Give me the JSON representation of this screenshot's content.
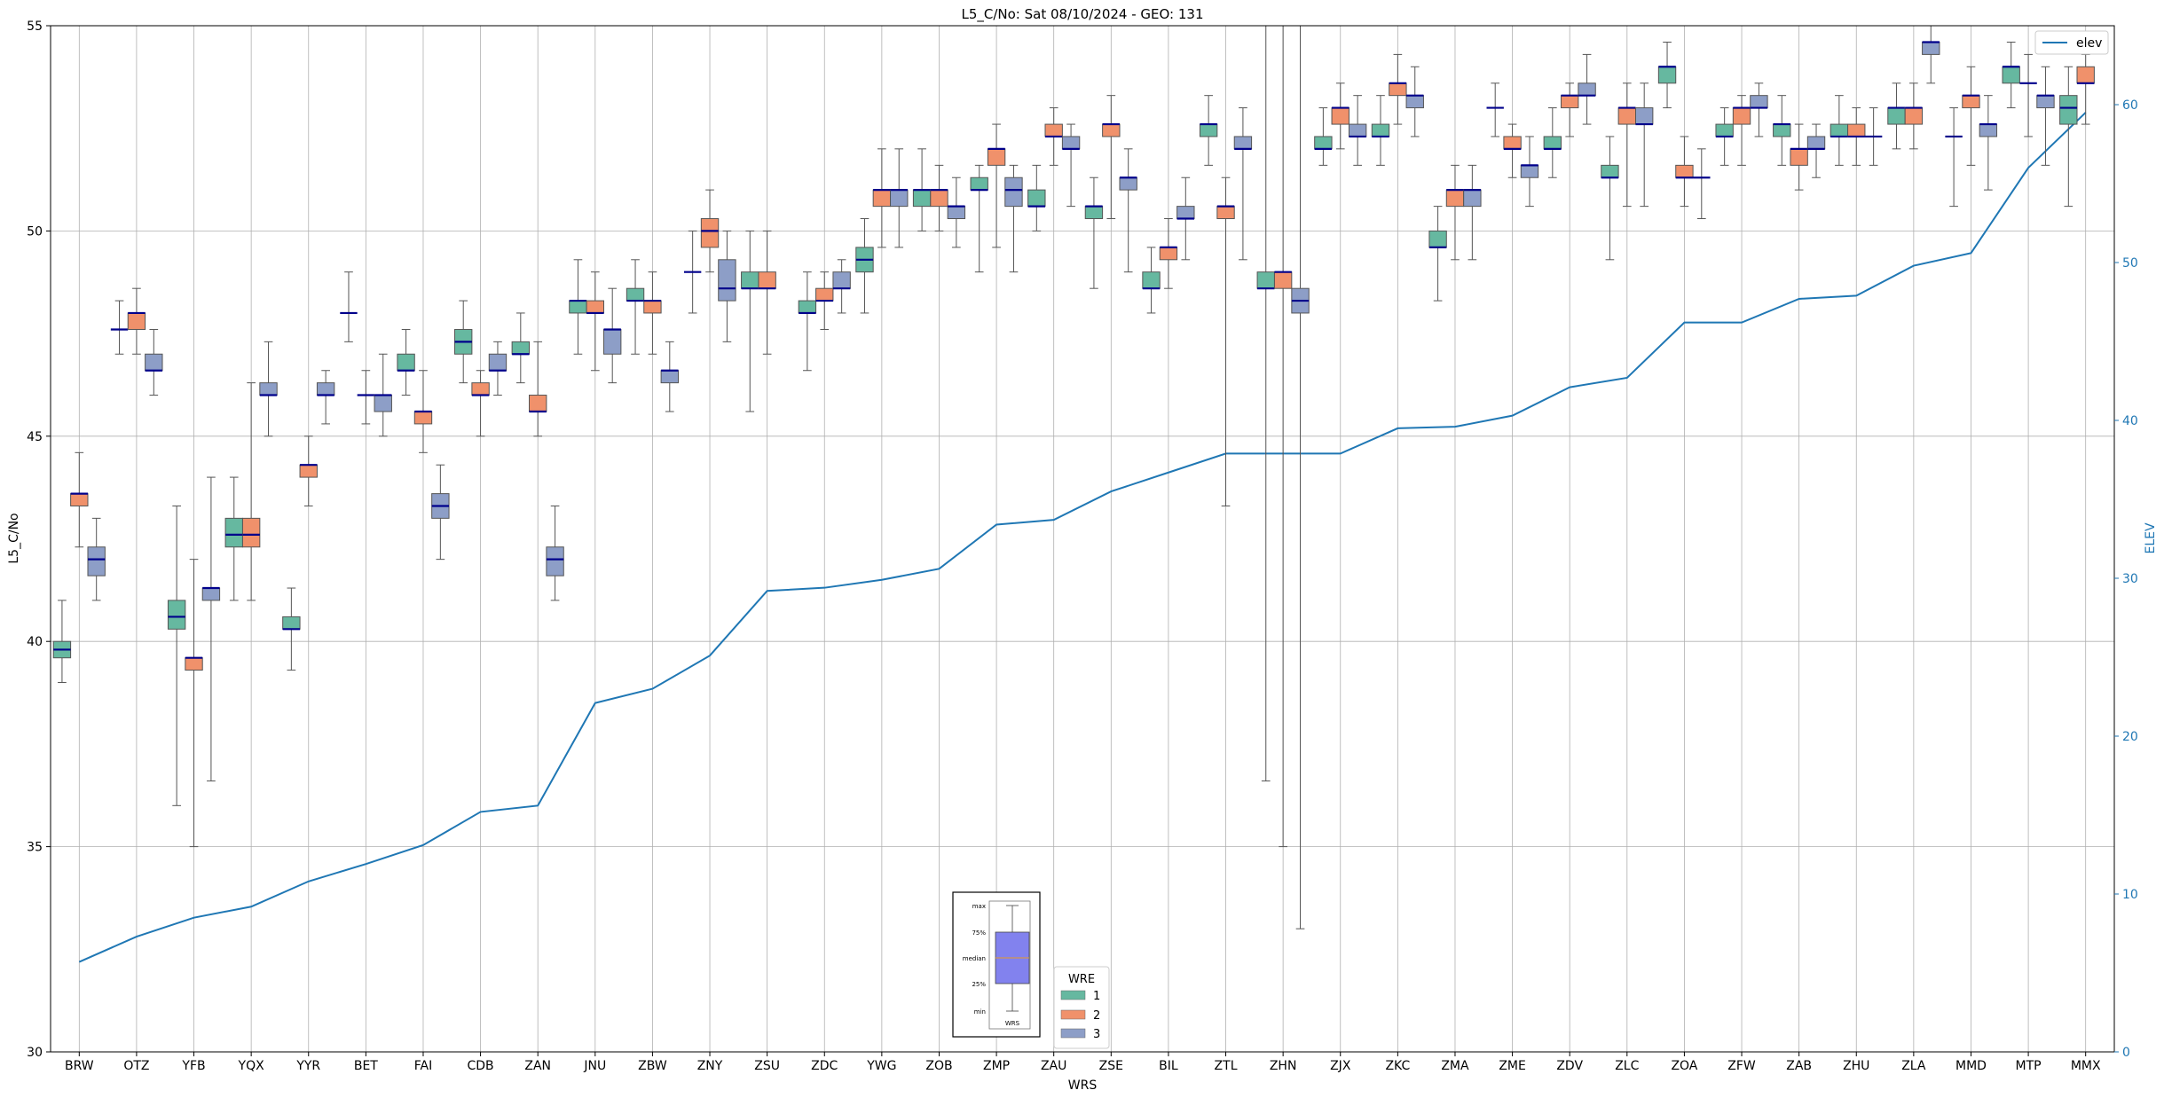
{
  "chart_data": {
    "type": "box",
    "title": "L5_C/No: Sat 08/10/2024 - GEO: 131",
    "xlabel": "WRS",
    "ylabel": "L5_C/No",
    "ylabel_right": "ELEV",
    "ylim": [
      30,
      55
    ],
    "ylim_right": [
      0,
      65
    ],
    "yticks": [
      30,
      35,
      40,
      45,
      50,
      55
    ],
    "yticks_right": [
      0,
      10,
      20,
      30,
      40,
      50,
      60
    ],
    "grid": true,
    "colors": {
      "wre1": "#66b8a0",
      "wre2": "#f0916b",
      "wre3": "#8d9ec7",
      "median": "#00008b",
      "elev": "#1f77b4"
    },
    "categories": [
      "BRW",
      "OTZ",
      "YFB",
      "YQX",
      "YYR",
      "BET",
      "FAI",
      "CDB",
      "ZAN",
      "JNU",
      "ZBW",
      "ZNY",
      "ZSU",
      "ZDC",
      "YWG",
      "ZOB",
      "ZMP",
      "ZAU",
      "ZSE",
      "BIL",
      "ZTL",
      "ZHN",
      "ZJX",
      "ZKC",
      "ZMA",
      "ZME",
      "ZDV",
      "ZLC",
      "ZOA",
      "ZFW",
      "ZAB",
      "ZHU",
      "ZLA",
      "MMD",
      "MTP",
      "MMX"
    ],
    "boxes": [
      {
        "site": "BRW",
        "wre": 1,
        "min": 39.0,
        "q1": 39.6,
        "med": 39.8,
        "q3": 40.0,
        "max": 41.0
      },
      {
        "site": "BRW",
        "wre": 2,
        "min": 42.3,
        "q1": 43.3,
        "med": 43.6,
        "q3": 43.6,
        "max": 44.6
      },
      {
        "site": "BRW",
        "wre": 3,
        "min": 41.0,
        "q1": 41.6,
        "med": 42.0,
        "q3": 42.3,
        "max": 43.0
      },
      {
        "site": "OTZ",
        "wre": 1,
        "min": 47.0,
        "q1": 47.6,
        "med": 47.6,
        "q3": 47.6,
        "max": 48.3
      },
      {
        "site": "OTZ",
        "wre": 2,
        "min": 47.0,
        "q1": 47.6,
        "med": 48.0,
        "q3": 48.0,
        "max": 48.6
      },
      {
        "site": "OTZ",
        "wre": 3,
        "min": 46.0,
        "q1": 46.6,
        "med": 46.6,
        "q3": 47.0,
        "max": 47.6
      },
      {
        "site": "YFB",
        "wre": 1,
        "min": 36.0,
        "q1": 40.3,
        "med": 40.6,
        "q3": 41.0,
        "max": 43.3
      },
      {
        "site": "YFB",
        "wre": 2,
        "min": 35.0,
        "q1": 39.3,
        "med": 39.6,
        "q3": 39.6,
        "max": 42.0
      },
      {
        "site": "YFB",
        "wre": 3,
        "min": 36.6,
        "q1": 41.0,
        "med": 41.3,
        "q3": 41.3,
        "max": 44.0
      },
      {
        "site": "YQX",
        "wre": 1,
        "min": 41.0,
        "q1": 42.3,
        "med": 42.6,
        "q3": 43.0,
        "max": 44.0
      },
      {
        "site": "YQX",
        "wre": 2,
        "min": 41.0,
        "q1": 42.3,
        "med": 42.6,
        "q3": 43.0,
        "max": 46.3
      },
      {
        "site": "YQX",
        "wre": 3,
        "min": 45.0,
        "q1": 46.0,
        "med": 46.0,
        "q3": 46.3,
        "max": 47.3
      },
      {
        "site": "YYR",
        "wre": 1,
        "min": 39.3,
        "q1": 40.3,
        "med": 40.3,
        "q3": 40.6,
        "max": 41.3
      },
      {
        "site": "YYR",
        "wre": 2,
        "min": 43.3,
        "q1": 44.0,
        "med": 44.3,
        "q3": 44.3,
        "max": 45.0
      },
      {
        "site": "YYR",
        "wre": 3,
        "min": 45.3,
        "q1": 46.0,
        "med": 46.0,
        "q3": 46.3,
        "max": 46.6
      },
      {
        "site": "BET",
        "wre": 1,
        "min": 47.3,
        "q1": 48.0,
        "med": 48.0,
        "q3": 48.0,
        "max": 49.0
      },
      {
        "site": "BET",
        "wre": 2,
        "min": 45.3,
        "q1": 46.0,
        "med": 46.0,
        "q3": 46.0,
        "max": 46.6
      },
      {
        "site": "BET",
        "wre": 3,
        "min": 45.0,
        "q1": 45.6,
        "med": 46.0,
        "q3": 46.0,
        "max": 47.0
      },
      {
        "site": "FAI",
        "wre": 1,
        "min": 46.0,
        "q1": 46.6,
        "med": 46.6,
        "q3": 47.0,
        "max": 47.6
      },
      {
        "site": "FAI",
        "wre": 2,
        "min": 44.6,
        "q1": 45.3,
        "med": 45.6,
        "q3": 45.6,
        "max": 46.6
      },
      {
        "site": "FAI",
        "wre": 3,
        "min": 42.0,
        "q1": 43.0,
        "med": 43.3,
        "q3": 43.6,
        "max": 44.3
      },
      {
        "site": "CDB",
        "wre": 1,
        "min": 46.3,
        "q1": 47.0,
        "med": 47.3,
        "q3": 47.6,
        "max": 48.3
      },
      {
        "site": "CDB",
        "wre": 2,
        "min": 45.0,
        "q1": 46.0,
        "med": 46.0,
        "q3": 46.3,
        "max": 46.6
      },
      {
        "site": "CDB",
        "wre": 3,
        "min": 46.0,
        "q1": 46.6,
        "med": 46.6,
        "q3": 47.0,
        "max": 47.3
      },
      {
        "site": "ZAN",
        "wre": 1,
        "min": 46.3,
        "q1": 47.0,
        "med": 47.0,
        "q3": 47.3,
        "max": 48.0
      },
      {
        "site": "ZAN",
        "wre": 2,
        "min": 45.0,
        "q1": 45.6,
        "med": 45.6,
        "q3": 46.0,
        "max": 47.3
      },
      {
        "site": "ZAN",
        "wre": 3,
        "min": 41.0,
        "q1": 41.6,
        "med": 42.0,
        "q3": 42.3,
        "max": 43.3
      },
      {
        "site": "JNU",
        "wre": 1,
        "min": 47.0,
        "q1": 48.0,
        "med": 48.3,
        "q3": 48.3,
        "max": 49.3
      },
      {
        "site": "JNU",
        "wre": 2,
        "min": 46.6,
        "q1": 48.0,
        "med": 48.0,
        "q3": 48.3,
        "max": 49.0
      },
      {
        "site": "JNU",
        "wre": 3,
        "min": 46.3,
        "q1": 47.0,
        "med": 47.6,
        "q3": 47.6,
        "max": 48.6
      },
      {
        "site": "ZBW",
        "wre": 1,
        "min": 47.0,
        "q1": 48.3,
        "med": 48.3,
        "q3": 48.6,
        "max": 49.3
      },
      {
        "site": "ZBW",
        "wre": 2,
        "min": 47.0,
        "q1": 48.0,
        "med": 48.3,
        "q3": 48.3,
        "max": 49.0
      },
      {
        "site": "ZBW",
        "wre": 3,
        "min": 45.6,
        "q1": 46.3,
        "med": 46.6,
        "q3": 46.6,
        "max": 47.3
      },
      {
        "site": "ZNY",
        "wre": 1,
        "min": 48.0,
        "q1": 49.0,
        "med": 49.0,
        "q3": 49.0,
        "max": 50.0
      },
      {
        "site": "ZNY",
        "wre": 2,
        "min": 49.0,
        "q1": 49.6,
        "med": 50.0,
        "q3": 50.3,
        "max": 51.0
      },
      {
        "site": "ZNY",
        "wre": 3,
        "min": 47.3,
        "q1": 48.3,
        "med": 48.6,
        "q3": 49.3,
        "max": 50.0
      },
      {
        "site": "ZSU",
        "wre": 1,
        "min": 45.6,
        "q1": 48.6,
        "med": 48.6,
        "q3": 49.0,
        "max": 50.0
      },
      {
        "site": "ZSU",
        "wre": 2,
        "min": 47.0,
        "q1": 48.6,
        "med": 48.6,
        "q3": 49.0,
        "max": 50.0
      },
      {
        "site": "ZDC",
        "wre": 1,
        "min": 46.6,
        "q1": 48.0,
        "med": 48.0,
        "q3": 48.3,
        "max": 49.0
      },
      {
        "site": "ZDC",
        "wre": 2,
        "min": 47.6,
        "q1": 48.3,
        "med": 48.3,
        "q3": 48.6,
        "max": 49.0
      },
      {
        "site": "ZDC",
        "wre": 3,
        "min": 48.0,
        "q1": 48.6,
        "med": 48.6,
        "q3": 49.0,
        "max": 49.3
      },
      {
        "site": "YWG",
        "wre": 1,
        "min": 48.0,
        "q1": 49.0,
        "med": 49.3,
        "q3": 49.6,
        "max": 50.3
      },
      {
        "site": "YWG",
        "wre": 2,
        "min": 49.6,
        "q1": 50.6,
        "med": 51.0,
        "q3": 51.0,
        "max": 52.0
      },
      {
        "site": "YWG",
        "wre": 3,
        "min": 49.6,
        "q1": 50.6,
        "med": 51.0,
        "q3": 51.0,
        "max": 52.0
      },
      {
        "site": "ZOB",
        "wre": 1,
        "min": 50.0,
        "q1": 50.6,
        "med": 51.0,
        "q3": 51.0,
        "max": 52.0
      },
      {
        "site": "ZOB",
        "wre": 2,
        "min": 50.0,
        "q1": 50.6,
        "med": 51.0,
        "q3": 51.0,
        "max": 51.6
      },
      {
        "site": "ZOB",
        "wre": 3,
        "min": 49.6,
        "q1": 50.3,
        "med": 50.6,
        "q3": 50.6,
        "max": 51.3
      },
      {
        "site": "ZMP",
        "wre": 1,
        "min": 49.0,
        "q1": 51.0,
        "med": 51.0,
        "q3": 51.3,
        "max": 51.6
      },
      {
        "site": "ZMP",
        "wre": 2,
        "min": 49.6,
        "q1": 51.6,
        "med": 52.0,
        "q3": 52.0,
        "max": 52.6
      },
      {
        "site": "ZMP",
        "wre": 3,
        "min": 49.0,
        "q1": 50.6,
        "med": 51.0,
        "q3": 51.3,
        "max": 51.6
      },
      {
        "site": "ZAU",
        "wre": 1,
        "min": 50.0,
        "q1": 50.6,
        "med": 50.6,
        "q3": 51.0,
        "max": 51.6
      },
      {
        "site": "ZAU",
        "wre": 2,
        "min": 51.6,
        "q1": 52.3,
        "med": 52.3,
        "q3": 52.6,
        "max": 53.0
      },
      {
        "site": "ZAU",
        "wre": 3,
        "min": 50.6,
        "q1": 52.0,
        "med": 52.0,
        "q3": 52.3,
        "max": 52.6
      },
      {
        "site": "ZSE",
        "wre": 1,
        "min": 48.6,
        "q1": 50.3,
        "med": 50.6,
        "q3": 50.6,
        "max": 51.3
      },
      {
        "site": "ZSE",
        "wre": 2,
        "min": 50.3,
        "q1": 52.3,
        "med": 52.6,
        "q3": 52.6,
        "max": 53.3
      },
      {
        "site": "ZSE",
        "wre": 3,
        "min": 49.0,
        "q1": 51.0,
        "med": 51.3,
        "q3": 51.3,
        "max": 52.0
      },
      {
        "site": "BIL",
        "wre": 1,
        "min": 48.0,
        "q1": 48.6,
        "med": 48.6,
        "q3": 49.0,
        "max": 49.6
      },
      {
        "site": "BIL",
        "wre": 2,
        "min": 48.6,
        "q1": 49.3,
        "med": 49.6,
        "q3": 49.6,
        "max": 50.3
      },
      {
        "site": "BIL",
        "wre": 3,
        "min": 49.3,
        "q1": 50.3,
        "med": 50.3,
        "q3": 50.6,
        "max": 51.3
      },
      {
        "site": "ZTL",
        "wre": 1,
        "min": 51.6,
        "q1": 52.3,
        "med": 52.6,
        "q3": 52.6,
        "max": 53.3
      },
      {
        "site": "ZTL",
        "wre": 2,
        "min": 43.3,
        "q1": 50.3,
        "med": 50.6,
        "q3": 50.6,
        "max": 51.3
      },
      {
        "site": "ZTL",
        "wre": 3,
        "min": 49.3,
        "q1": 52.0,
        "med": 52.0,
        "q3": 52.3,
        "max": 53.0
      },
      {
        "site": "ZHN",
        "wre": 1,
        "min": 36.6,
        "q1": 48.6,
        "med": 48.6,
        "q3": 49.0,
        "max": 55.0
      },
      {
        "site": "ZHN",
        "wre": 2,
        "min": 35.0,
        "q1": 48.6,
        "med": 49.0,
        "q3": 49.0,
        "max": 55.0
      },
      {
        "site": "ZHN",
        "wre": 3,
        "min": 33.0,
        "q1": 48.0,
        "med": 48.3,
        "q3": 48.6,
        "max": 55.0
      },
      {
        "site": "ZJX",
        "wre": 1,
        "min": 51.6,
        "q1": 52.0,
        "med": 52.0,
        "q3": 52.3,
        "max": 53.0
      },
      {
        "site": "ZJX",
        "wre": 2,
        "min": 52.0,
        "q1": 52.6,
        "med": 53.0,
        "q3": 53.0,
        "max": 53.6
      },
      {
        "site": "ZJX",
        "wre": 3,
        "min": 51.6,
        "q1": 52.3,
        "med": 52.3,
        "q3": 52.6,
        "max": 53.3
      },
      {
        "site": "ZKC",
        "wre": 1,
        "min": 51.6,
        "q1": 52.3,
        "med": 52.3,
        "q3": 52.6,
        "max": 53.3
      },
      {
        "site": "ZKC",
        "wre": 2,
        "min": 52.6,
        "q1": 53.3,
        "med": 53.6,
        "q3": 53.6,
        "max": 54.3
      },
      {
        "site": "ZKC",
        "wre": 3,
        "min": 52.3,
        "q1": 53.0,
        "med": 53.3,
        "q3": 53.3,
        "max": 54.0
      },
      {
        "site": "ZMA",
        "wre": 1,
        "min": 48.3,
        "q1": 49.6,
        "med": 49.6,
        "q3": 50.0,
        "max": 50.6
      },
      {
        "site": "ZMA",
        "wre": 2,
        "min": 49.3,
        "q1": 50.6,
        "med": 51.0,
        "q3": 51.0,
        "max": 51.6
      },
      {
        "site": "ZMA",
        "wre": 3,
        "min": 49.3,
        "q1": 50.6,
        "med": 51.0,
        "q3": 51.0,
        "max": 51.6
      },
      {
        "site": "ZME",
        "wre": 1,
        "min": 52.3,
        "q1": 53.0,
        "med": 53.0,
        "q3": 53.0,
        "max": 53.6
      },
      {
        "site": "ZME",
        "wre": 2,
        "min": 51.3,
        "q1": 52.0,
        "med": 52.0,
        "q3": 52.3,
        "max": 52.6
      },
      {
        "site": "ZME",
        "wre": 3,
        "min": 50.6,
        "q1": 51.3,
        "med": 51.6,
        "q3": 51.6,
        "max": 52.3
      },
      {
        "site": "ZDV",
        "wre": 1,
        "min": 51.3,
        "q1": 52.0,
        "med": 52.0,
        "q3": 52.3,
        "max": 53.0
      },
      {
        "site": "ZDV",
        "wre": 2,
        "min": 52.3,
        "q1": 53.0,
        "med": 53.3,
        "q3": 53.3,
        "max": 53.6
      },
      {
        "site": "ZDV",
        "wre": 3,
        "min": 52.6,
        "q1": 53.3,
        "med": 53.3,
        "q3": 53.6,
        "max": 54.3
      },
      {
        "site": "ZLC",
        "wre": 1,
        "min": 49.3,
        "q1": 51.3,
        "med": 51.3,
        "q3": 51.6,
        "max": 52.3
      },
      {
        "site": "ZLC",
        "wre": 2,
        "min": 50.6,
        "q1": 52.6,
        "med": 53.0,
        "q3": 53.0,
        "max": 53.6
      },
      {
        "site": "ZLC",
        "wre": 3,
        "min": 50.6,
        "q1": 52.6,
        "med": 52.6,
        "q3": 53.0,
        "max": 53.6
      },
      {
        "site": "ZOA",
        "wre": 1,
        "min": 53.0,
        "q1": 53.6,
        "med": 54.0,
        "q3": 54.0,
        "max": 54.6
      },
      {
        "site": "ZOA",
        "wre": 2,
        "min": 50.6,
        "q1": 51.3,
        "med": 51.3,
        "q3": 51.6,
        "max": 52.3
      },
      {
        "site": "ZOA",
        "wre": 3,
        "min": 50.3,
        "q1": 51.3,
        "med": 51.3,
        "q3": 51.3,
        "max": 52.0
      },
      {
        "site": "ZFW",
        "wre": 1,
        "min": 51.6,
        "q1": 52.3,
        "med": 52.3,
        "q3": 52.6,
        "max": 53.0
      },
      {
        "site": "ZFW",
        "wre": 2,
        "min": 51.6,
        "q1": 52.6,
        "med": 53.0,
        "q3": 53.0,
        "max": 53.3
      },
      {
        "site": "ZFW",
        "wre": 3,
        "min": 52.3,
        "q1": 53.0,
        "med": 53.0,
        "q3": 53.3,
        "max": 53.6
      },
      {
        "site": "ZAB",
        "wre": 1,
        "min": 51.6,
        "q1": 52.3,
        "med": 52.6,
        "q3": 52.6,
        "max": 53.3
      },
      {
        "site": "ZAB",
        "wre": 2,
        "min": 51.0,
        "q1": 51.6,
        "med": 52.0,
        "q3": 52.0,
        "max": 52.6
      },
      {
        "site": "ZAB",
        "wre": 3,
        "min": 51.3,
        "q1": 52.0,
        "med": 52.0,
        "q3": 52.3,
        "max": 52.6
      },
      {
        "site": "ZHU",
        "wre": 1,
        "min": 51.6,
        "q1": 52.3,
        "med": 52.3,
        "q3": 52.6,
        "max": 53.3
      },
      {
        "site": "ZHU",
        "wre": 2,
        "min": 51.6,
        "q1": 52.3,
        "med": 52.3,
        "q3": 52.6,
        "max": 53.0
      },
      {
        "site": "ZHU",
        "wre": 3,
        "min": 51.6,
        "q1": 52.3,
        "med": 52.3,
        "q3": 52.3,
        "max": 53.0
      },
      {
        "site": "ZLA",
        "wre": 1,
        "min": 52.0,
        "q1": 52.6,
        "med": 53.0,
        "q3": 53.0,
        "max": 53.6
      },
      {
        "site": "ZLA",
        "wre": 2,
        "min": 52.0,
        "q1": 52.6,
        "med": 53.0,
        "q3": 53.0,
        "max": 53.6
      },
      {
        "site": "ZLA",
        "wre": 3,
        "min": 53.6,
        "q1": 54.3,
        "med": 54.6,
        "q3": 54.6,
        "max": 55.0
      },
      {
        "site": "MMD",
        "wre": 1,
        "min": 50.6,
        "q1": 52.3,
        "med": 52.3,
        "q3": 52.3,
        "max": 53.0
      },
      {
        "site": "MMD",
        "wre": 2,
        "min": 51.6,
        "q1": 53.0,
        "med": 53.3,
        "q3": 53.3,
        "max": 54.0
      },
      {
        "site": "MMD",
        "wre": 3,
        "min": 51.0,
        "q1": 52.3,
        "med": 52.6,
        "q3": 52.6,
        "max": 53.3
      },
      {
        "site": "MTP",
        "wre": 1,
        "min": 53.0,
        "q1": 53.6,
        "med": 54.0,
        "q3": 54.0,
        "max": 54.6
      },
      {
        "site": "MTP",
        "wre": 2,
        "min": 52.3,
        "q1": 53.6,
        "med": 53.6,
        "q3": 53.6,
        "max": 54.3
      },
      {
        "site": "MTP",
        "wre": 3,
        "min": 51.6,
        "q1": 53.0,
        "med": 53.3,
        "q3": 53.3,
        "max": 54.0
      },
      {
        "site": "MMX",
        "wre": 1,
        "min": 50.6,
        "q1": 52.6,
        "med": 53.0,
        "q3": 53.3,
        "max": 54.0
      },
      {
        "site": "MMX",
        "wre": 2,
        "min": 52.6,
        "q1": 53.6,
        "med": 53.6,
        "q3": 54.0,
        "max": 54.3
      }
    ],
    "elev_series": {
      "name": "elev",
      "values": [
        5.7,
        7.3,
        8.5,
        9.2,
        10.8,
        11.9,
        13.1,
        15.2,
        15.6,
        22.1,
        23.0,
        25.1,
        29.2,
        29.4,
        29.9,
        30.6,
        33.4,
        33.7,
        35.5,
        36.7,
        37.9,
        37.9,
        37.9,
        39.5,
        39.6,
        40.3,
        42.1,
        42.7,
        46.2,
        46.2,
        47.7,
        47.9,
        49.8,
        50.6,
        56.0,
        59.5
      ]
    },
    "legend_elev": {
      "label": "elev",
      "position": "top-right"
    },
    "legend_wre": {
      "title": "WRE",
      "items": [
        "1",
        "2",
        "3"
      ],
      "position": "bottom-center"
    },
    "legend_boxkey": {
      "labels": [
        "max",
        "75%",
        "median",
        "25%",
        "min"
      ],
      "xlabel": "WRS"
    }
  }
}
